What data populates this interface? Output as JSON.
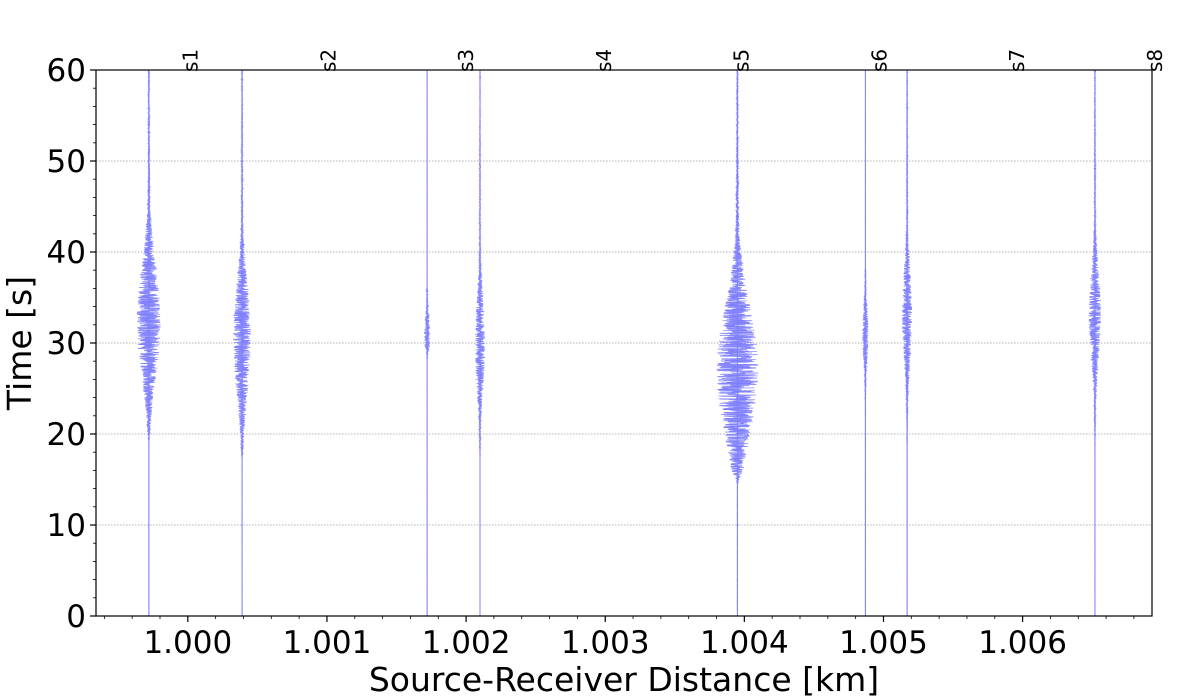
{
  "chart_data": {
    "type": "line",
    "xlabel": "Source-Receiver Distance [km]",
    "ylabel": "Time [s]",
    "xlim": [
      0.99934,
      1.00693
    ],
    "ylim": [
      0,
      60
    ],
    "xticks": [
      1.0,
      1.001,
      1.002,
      1.003,
      1.004,
      1.005,
      1.006
    ],
    "xtick_labels": [
      "1.000",
      "1.001",
      "1.002",
      "1.003",
      "1.004",
      "1.005",
      "1.006"
    ],
    "yticks": [
      0,
      10,
      20,
      30,
      40,
      50,
      60
    ],
    "ytick_labels": [
      "0",
      "10",
      "20",
      "30",
      "40",
      "50",
      "60"
    ],
    "grid": "horizontal dotted",
    "trace_color": "#8080ff",
    "station_labels": [
      {
        "label": "s1",
        "x": 1.00002
      },
      {
        "label": "s2",
        "x": 1.00101
      },
      {
        "label": "s3",
        "x": 1.002
      },
      {
        "label": "s4",
        "x": 1.00299
      },
      {
        "label": "s5",
        "x": 1.00398
      },
      {
        "label": "s6",
        "x": 1.00497
      },
      {
        "label": "s7",
        "x": 1.00596
      },
      {
        "label": "s8",
        "x": 1.00695
      }
    ],
    "traces": [
      {
        "x": 0.99972,
        "noise": 0.15,
        "onset": 19,
        "end": 60,
        "peak_time": 32.5,
        "peak_amp": 12,
        "width": 6
      },
      {
        "x": 1.00039,
        "noise": 0.15,
        "onset": 17,
        "end": 60,
        "peak_time": 30.5,
        "peak_amp": 9,
        "width": 6
      },
      {
        "x": 1.00172,
        "noise": 0.1,
        "onset": 28,
        "end": 36,
        "peak_time": 31,
        "peak_amp": 3,
        "width": 2
      },
      {
        "x": 1.0021,
        "noise": 0.15,
        "onset": 17,
        "end": 60,
        "peak_time": 30,
        "peak_amp": 5,
        "width": 5
      },
      {
        "x": 1.00395,
        "noise": 0.2,
        "onset": 14.5,
        "end": 60,
        "peak_time": 27,
        "peak_amp": 21,
        "width": 7
      },
      {
        "x": 1.00487,
        "noise": 0.15,
        "onset": 18,
        "end": 38,
        "peak_time": 31,
        "peak_amp": 3,
        "width": 3
      },
      {
        "x": 1.00517,
        "noise": 0.15,
        "onset": 18,
        "end": 60,
        "peak_time": 33,
        "peak_amp": 5,
        "width": 5
      },
      {
        "x": 1.00652,
        "noise": 0.15,
        "onset": 18,
        "end": 60,
        "peak_time": 33,
        "peak_amp": 6,
        "width": 5
      }
    ]
  }
}
